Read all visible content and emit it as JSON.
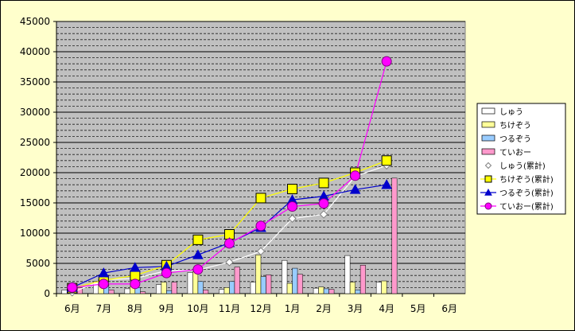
{
  "chart_data": {
    "type": "bar",
    "categories": [
      "6月",
      "7月",
      "8月",
      "9月",
      "10月",
      "11月",
      "12月",
      "1月",
      "2月",
      "3月",
      "4月",
      "5月",
      "6月"
    ],
    "ylim": [
      0,
      45000
    ],
    "yticks": [
      0,
      5000,
      10000,
      15000,
      20000,
      25000,
      30000,
      35000,
      40000,
      45000
    ],
    "grid": true,
    "legend_position": "right",
    "bar_series": [
      {
        "name": "しゅう",
        "color": "#ffffff",
        "values": [
          600,
          2000,
          800,
          1500,
          3500,
          700,
          1900,
          5500,
          900,
          6300,
          1900,
          null,
          null
        ]
      },
      {
        "name": "ちけぞう",
        "color": "#ffff99",
        "values": [
          800,
          2300,
          1200,
          1900,
          3600,
          1000,
          6400,
          1700,
          1100,
          1900,
          2100,
          null,
          null
        ]
      },
      {
        "name": "つるぞう",
        "color": "#99ccff",
        "values": [
          200,
          1500,
          1000,
          500,
          2000,
          2000,
          2800,
          4200,
          800,
          600,
          0,
          null,
          null
        ]
      },
      {
        "name": "ていおー",
        "color": "#ff99cc",
        "values": [
          1000,
          600,
          300,
          1900,
          600,
          4400,
          3100,
          3200,
          700,
          4700,
          19100,
          null,
          null
        ]
      }
    ],
    "line_series": [
      {
        "name": "しゅう(累計)",
        "color": "#000000",
        "line_color": "#ffffff",
        "marker": "diamond",
        "marker_fill": "#ffffff",
        "values": [
          200,
          2300,
          2500,
          3800,
          3900,
          5200,
          7000,
          12400,
          13100,
          19400,
          21200,
          null,
          null
        ]
      },
      {
        "name": "ちけぞう(累計)",
        "color": "#ffff00",
        "line_color": "#ffff00",
        "marker": "square",
        "marker_fill": "#ffff00",
        "values": [
          900,
          2200,
          3000,
          4700,
          8900,
          9800,
          15800,
          17300,
          18300,
          20000,
          22000,
          null,
          null
        ]
      },
      {
        "name": "つるぞう(累計)",
        "color": "#0000cc",
        "line_color": "#0000cc",
        "marker": "triangle",
        "marker_fill": "#0000cc",
        "values": [
          1000,
          3400,
          4300,
          4500,
          6400,
          8400,
          10900,
          15500,
          16100,
          17200,
          18000,
          null,
          null
        ]
      },
      {
        "name": "ていおー(累計)",
        "color": "#ff00ff",
        "line_color": "#ff00ff",
        "marker": "circle",
        "marker_fill": "#ff00ff",
        "values": [
          1000,
          1600,
          1600,
          3400,
          4000,
          8300,
          11200,
          14400,
          14900,
          19500,
          38400,
          null,
          null
        ]
      }
    ]
  }
}
